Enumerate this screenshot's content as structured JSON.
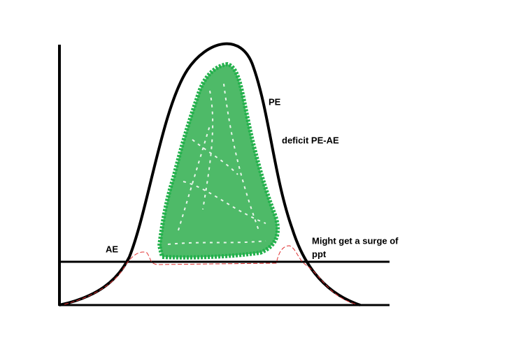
{
  "labels": {
    "pe": "PE",
    "deficit": "deficit PE-AE",
    "ae": "AE",
    "surge": [
      "Might get a surge of",
      "ppt"
    ]
  }
}
